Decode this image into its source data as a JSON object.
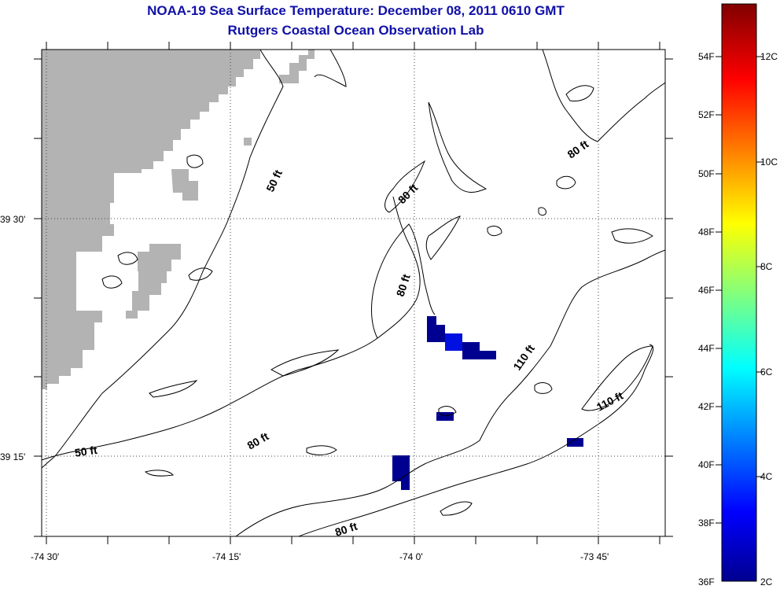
{
  "title": {
    "line1": "NOAA-19 Sea Surface Temperature:  December 08, 2011 0610 GMT",
    "line2": "Rutgers Coastal Ocean Observation Lab"
  },
  "axes": {
    "x_ticks": [
      "-74 30'",
      "-74 15'",
      "-74 0'",
      "-73 45'"
    ],
    "y_ticks": [
      "39 30'",
      "39 15'"
    ]
  },
  "contour_labels": {
    "c50_top": "50 ft",
    "c50_bottom": "50 ft",
    "c80_a": "80 ft",
    "c80_b": "80 ft",
    "c80_c": "80 ft",
    "c80_d": "80 ft",
    "c80_e": "80 ft",
    "c110_a": "110 ft",
    "c110_b": "110 ft"
  },
  "colorbar": {
    "fahrenheit": [
      "54F",
      "52F",
      "50F",
      "48F",
      "46F",
      "44F",
      "42F",
      "40F",
      "38F",
      "36F"
    ],
    "celsius": [
      "12C",
      "10C",
      "8C",
      "6C",
      "4C",
      "2C"
    ],
    "colors": [
      "#00008f",
      "#0000ff",
      "#00ffff",
      "#ffff00",
      "#ff0000",
      "#800000"
    ]
  },
  "colors": {
    "title": "#1010a8",
    "land": "#b3b3b3",
    "sst_dark": "#000090",
    "sst_mid": "#0010e0"
  }
}
